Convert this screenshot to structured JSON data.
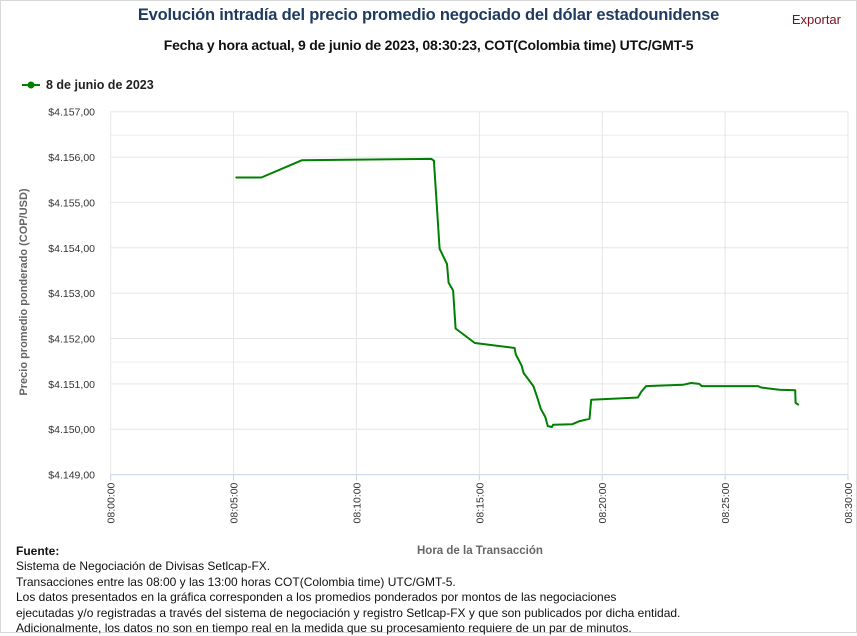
{
  "header": {
    "title": "Evolución intradía del precio promedio negociado del dólar estadounidense",
    "subtitle": "Fecha y hora actual, 9 de junio de 2023, 08:30:23, COT(Colombia time) UTC/GMT-5",
    "export_label": "Exportar"
  },
  "footer": {
    "heading": "Fuente:",
    "lines": [
      "Sistema de Negociación de Divisas Setlcap-FX.",
      "Transacciones entre las 08:00 y las 13:00 horas COT(Colombia time) UTC/GMT-5.",
      "Los datos presentados en la gráfica corresponden a los promedios ponderados por montos de las negociaciones",
      "ejecutadas y/o registradas a través del sistema de negociación y registro Setlcap-FX y que son publicados por dicha entidad.",
      "Adicionalmente, los datos no son en tiempo real en la medida que su procesamiento requiere de un par de minutos."
    ]
  },
  "chart_data": {
    "type": "line",
    "xlabel": "Hora de la Transacción",
    "ylabel": "Precio promedio ponderado (COP/USD)",
    "xlim": [
      "08:00:00",
      "08:30:00"
    ],
    "ylim": [
      4149,
      4157
    ],
    "grid": true,
    "legend_position": "top-left",
    "x_ticks": [
      "08:00:00",
      "08:05:00",
      "08:10:00",
      "08:15:00",
      "08:20:00",
      "08:25:00",
      "08:30:00"
    ],
    "y_ticks": [
      {
        "value": 4157,
        "label": "$4.157,00"
      },
      {
        "value": 4156,
        "label": "$4.156,00"
      },
      {
        "value": 4155,
        "label": "$4.155,00"
      },
      {
        "value": 4154,
        "label": "$4.154,00"
      },
      {
        "value": 4153,
        "label": "$4.153,00"
      },
      {
        "value": 4152,
        "label": "$4.152,00"
      },
      {
        "value": 4151,
        "label": "$4.151,00"
      },
      {
        "value": 4150,
        "label": "$4.150,00"
      },
      {
        "value": 4149,
        "label": "$4.149,00"
      }
    ],
    "series": [
      {
        "name": "8 de junio de 2023",
        "color": "#008000",
        "points": [
          [
            "08:05:06",
            4155.55
          ],
          [
            "08:06:08",
            4155.55
          ],
          [
            "08:07:47",
            4155.93
          ],
          [
            "08:13:03",
            4155.96
          ],
          [
            "08:13:09",
            4155.92
          ],
          [
            "08:13:23",
            4153.98
          ],
          [
            "08:13:41",
            4153.64
          ],
          [
            "08:13:45",
            4153.23
          ],
          [
            "08:13:56",
            4153.06
          ],
          [
            "08:14:02",
            4152.22
          ],
          [
            "08:14:49",
            4151.9
          ],
          [
            "08:16:26",
            4151.79
          ],
          [
            "08:16:29",
            4151.65
          ],
          [
            "08:16:43",
            4151.41
          ],
          [
            "08:16:48",
            4151.24
          ],
          [
            "08:17:12",
            4150.95
          ],
          [
            "08:17:21",
            4150.71
          ],
          [
            "08:17:30",
            4150.45
          ],
          [
            "08:17:41",
            4150.27
          ],
          [
            "08:17:47",
            4150.07
          ],
          [
            "08:17:57",
            4150.05
          ],
          [
            "08:18:00",
            4150.1
          ],
          [
            "08:18:47",
            4150.11
          ],
          [
            "08:19:05",
            4150.18
          ],
          [
            "08:19:29",
            4150.23
          ],
          [
            "08:19:33",
            4150.65
          ],
          [
            "08:21:27",
            4150.7
          ],
          [
            "08:21:35",
            4150.82
          ],
          [
            "08:21:47",
            4150.95
          ],
          [
            "08:23:17",
            4150.98
          ],
          [
            "08:23:37",
            4151.02
          ],
          [
            "08:23:57",
            4151.0
          ],
          [
            "08:24:03",
            4150.95
          ],
          [
            "08:26:20",
            4150.95
          ],
          [
            "08:26:28",
            4150.92
          ],
          [
            "08:27:12",
            4150.87
          ],
          [
            "08:27:51",
            4150.86
          ],
          [
            "08:27:52",
            4150.58
          ],
          [
            "08:27:59",
            4150.54
          ]
        ]
      }
    ]
  }
}
